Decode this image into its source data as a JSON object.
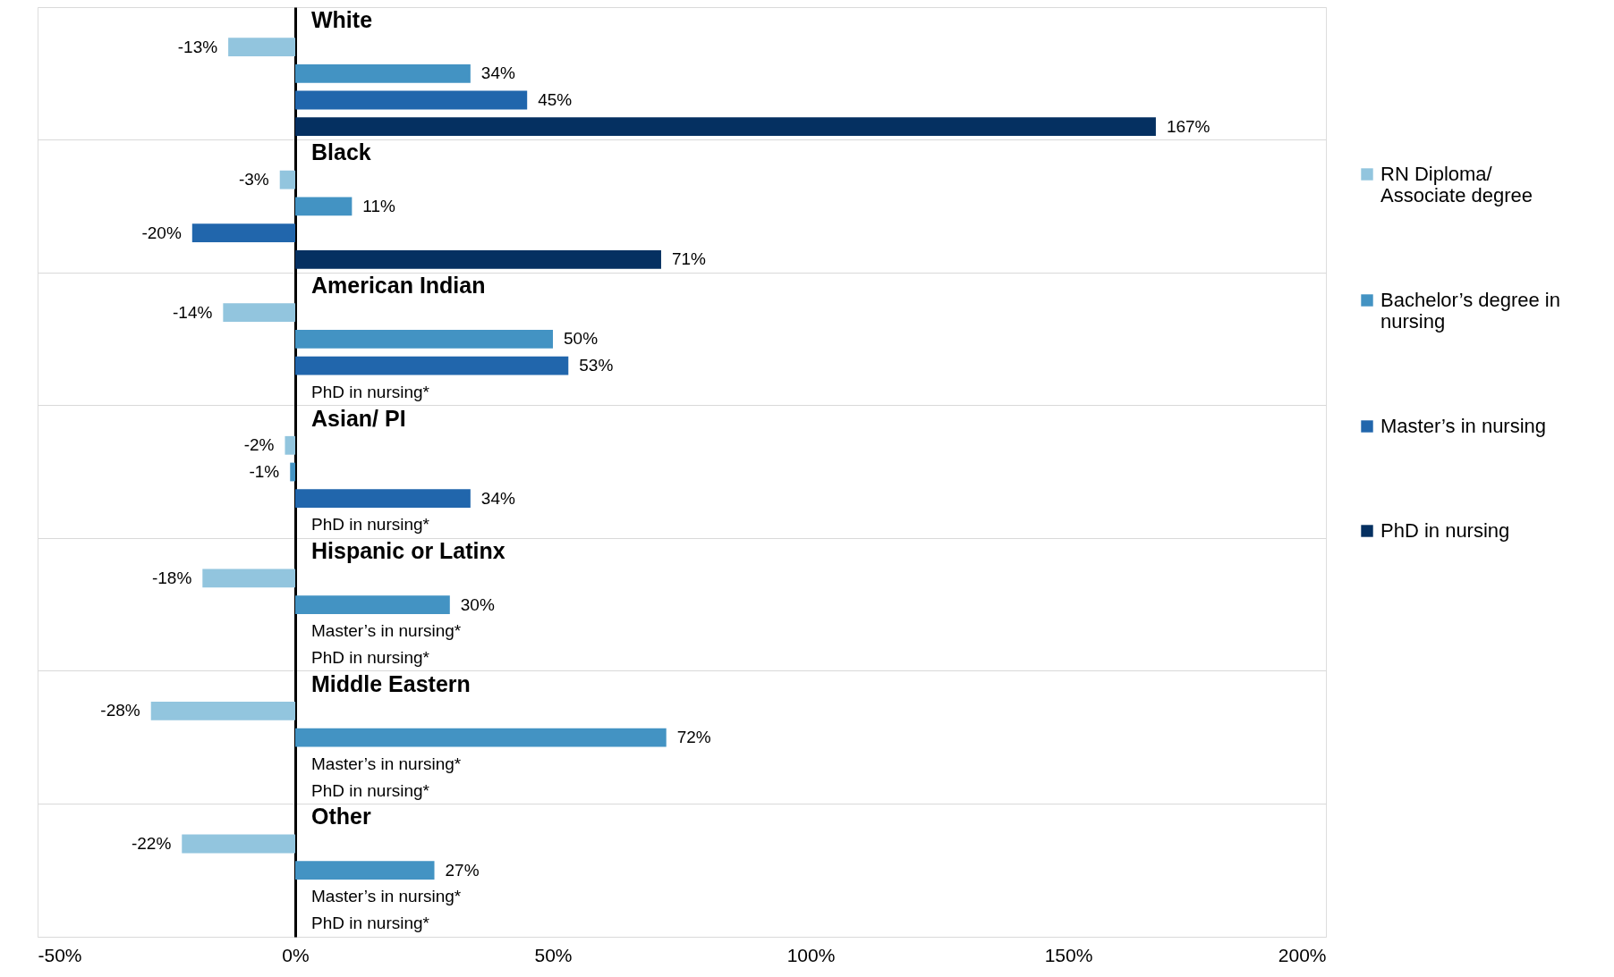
{
  "chart_data": {
    "type": "bar",
    "orientation": "horizontal",
    "categories": [
      "White",
      "Black",
      "American Indian",
      "Asian/ PI",
      "Hispanic or Latinx",
      "Middle Eastern",
      "Other"
    ],
    "series": [
      {
        "name": "RN Diploma/ Associate degree",
        "color": "#92c5de",
        "values": [
          -13,
          -3,
          -14,
          -2,
          -18,
          -28,
          -22
        ],
        "value_labels": [
          "-13%",
          "-3%",
          "-14%",
          "-2%",
          "-18%",
          "-28%",
          "-22%"
        ]
      },
      {
        "name": "Bachelor’s degree in nursing",
        "color": "#4393c3",
        "values": [
          34,
          11,
          50,
          -1,
          30,
          72,
          27
        ],
        "value_labels": [
          "34%",
          "11%",
          "50%",
          "-1%",
          "30%",
          "72%",
          "27%"
        ]
      },
      {
        "name": "Master’s in nursing",
        "color": "#2166ac",
        "values": [
          45,
          -20,
          53,
          34,
          null,
          null,
          null
        ],
        "value_labels": [
          "45%",
          "-20%",
          "53%",
          "34%",
          null,
          null,
          null
        ]
      },
      {
        "name": "PhD in nursing",
        "color": "#053061",
        "values": [
          167,
          71,
          null,
          null,
          null,
          null,
          null
        ],
        "value_labels": [
          "167%",
          "71%",
          null,
          null,
          null,
          null,
          null
        ]
      }
    ],
    "xlim": [
      -50,
      200
    ],
    "xticks": [
      {
        "value": -50,
        "label": "-50%"
      },
      {
        "value": 0,
        "label": "0%"
      },
      {
        "value": 50,
        "label": "50%"
      },
      {
        "value": 100,
        "label": "100%"
      },
      {
        "value": 150,
        "label": "150%"
      },
      {
        "value": 200,
        "label": "200%"
      }
    ],
    "annotations": [
      "PhD in nursing*",
      "PhD in nursing*",
      "Master’s in nursing*",
      "PhD in nursing*",
      "Master’s in nursing*",
      "PhD in nursing*",
      "Master’s in nursing*",
      "PhD in nursing*"
    ],
    "grid": "y",
    "legend": "right",
    "tick_labels": "x"
  }
}
